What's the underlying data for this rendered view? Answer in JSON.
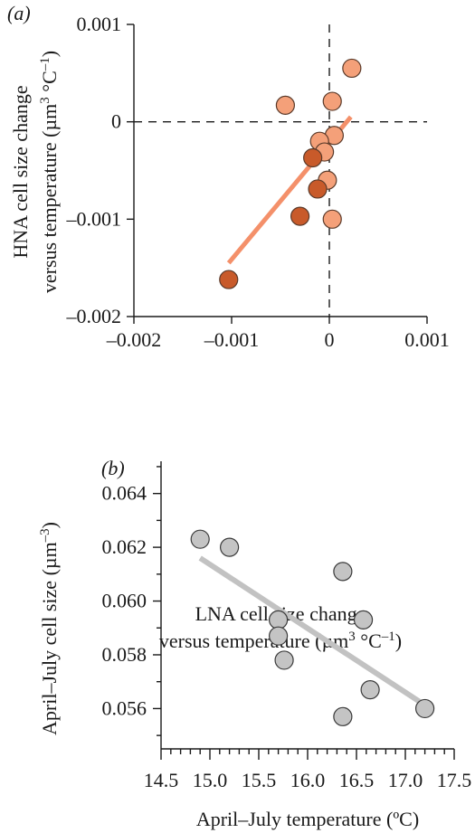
{
  "chart_data": [
    {
      "panel_label": "(a)",
      "type": "scatter",
      "xlabel_line1": "LNA cell size change",
      "xlabel_line2": "versus temperature (µm",
      "xlabel_unit_tail": "°C",
      "ylabel_line1": "HNA cell size change",
      "ylabel_line2": "versus temperature (µm",
      "ylabel_unit_tail": "°C",
      "unit_sup_cube": "3",
      "unit_sup_inv": "–1",
      "unit_close": ")",
      "xlim": [
        -0.002,
        0.001
      ],
      "ylim": [
        -0.002,
        0.001
      ],
      "xticks": [
        -0.002,
        -0.001,
        0,
        0.001
      ],
      "xtick_labels": [
        "–0.002",
        "–0.001",
        "0",
        "0.001"
      ],
      "yticks": [
        -0.002,
        -0.001,
        0,
        0.001
      ],
      "ytick_labels": [
        "–0.002",
        "–0.001",
        "0",
        "0.001"
      ],
      "reference_lines": {
        "x": 0,
        "y": 0,
        "style": "dashed"
      },
      "colors": {
        "light": "#f4a079",
        "dark": "#c85a2a",
        "fit": "#f4906a",
        "edge": "#5a3a2a"
      },
      "series": [
        {
          "color": "light",
          "points": [
            [
              0.00023,
              0.00055
            ],
            [
              -0.00045,
              0.00017
            ],
            [
              3e-05,
              0.00021
            ],
            [
              5e-05,
              -0.00014
            ],
            [
              -0.0001,
              -0.0002
            ],
            [
              -5e-05,
              -0.00031
            ],
            [
              -2e-05,
              -0.0006
            ],
            [
              3e-05,
              -0.001
            ]
          ]
        },
        {
          "color": "dark",
          "points": [
            [
              -0.00017,
              -0.00037
            ],
            [
              -0.00012,
              -0.00069
            ],
            [
              -0.0003,
              -0.00097
            ],
            [
              -0.00103,
              -0.00162
            ]
          ]
        }
      ],
      "fit_line": [
        [
          -0.00103,
          -0.00145
        ],
        [
          0.00022,
          5e-05
        ]
      ]
    },
    {
      "panel_label": "(b)",
      "type": "scatter",
      "xlabel": "April–July temperature (ºC)",
      "ylabel_main": "April–July cell size (µm",
      "ylabel_sup": "–3",
      "ylabel_close": ")",
      "xlim": [
        14.5,
        17.5
      ],
      "ylim": [
        0.0545,
        0.0652
      ],
      "xticks": [
        14.5,
        15.0,
        15.5,
        16.0,
        16.5,
        17.0,
        17.5
      ],
      "xtick_labels": [
        "14.5",
        "15.0",
        "15.5",
        "16.0",
        "16.5",
        "17.0",
        "17.5"
      ],
      "yticks": [
        0.056,
        0.058,
        0.06,
        0.062,
        0.064
      ],
      "ytick_labels": [
        "0.056",
        "0.058",
        "0.060",
        "0.062",
        "0.064"
      ],
      "colors": {
        "point": "#c4c4c4",
        "edge": "#3a3a3a",
        "fit": "#c2c2c2"
      },
      "points": [
        [
          14.9,
          0.0623
        ],
        [
          15.2,
          0.062
        ],
        [
          15.7,
          0.0593
        ],
        [
          15.7,
          0.0587
        ],
        [
          15.76,
          0.0578
        ],
        [
          16.36,
          0.0611
        ],
        [
          16.57,
          0.0593
        ],
        [
          16.64,
          0.0567
        ],
        [
          16.36,
          0.0557
        ],
        [
          17.2,
          0.056
        ]
      ],
      "fit_line": [
        [
          14.9,
          0.0616
        ],
        [
          17.17,
          0.0562
        ]
      ]
    }
  ]
}
